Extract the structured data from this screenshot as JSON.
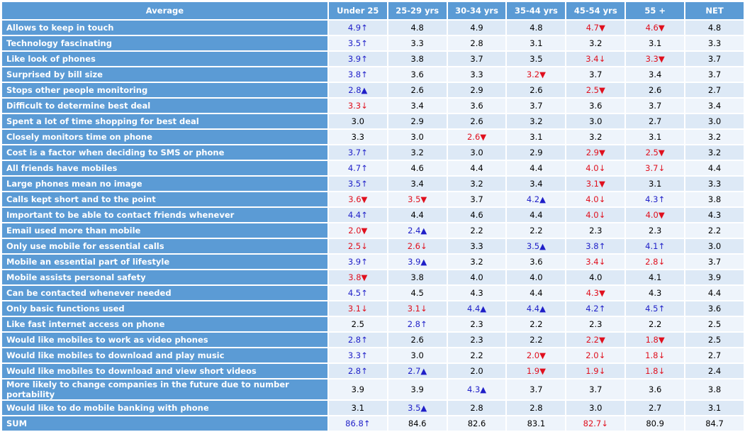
{
  "table": {
    "header": [
      "Average",
      "Under 25",
      "25-29 yrs",
      "30-34 yrs",
      "35-44 yrs",
      "45-54 yrs",
      "55 +",
      "NET"
    ],
    "colors": {
      "up": "#1f1fc8",
      "down": "#e0101e"
    },
    "rows": [
      [
        "Allows to keep in touch",
        "4.9↑",
        "4.8",
        "4.9",
        "4.8",
        "4.7▼",
        "4.6▼",
        "4.8"
      ],
      [
        "Technology fascinating",
        "3.5↑",
        "3.3",
        "2.8",
        "3.1",
        "3.2",
        "3.1",
        "3.3"
      ],
      [
        "Like look of phones",
        "3.9↑",
        "3.8",
        "3.7",
        "3.5",
        "3.4↓",
        "3.3▼",
        "3.7"
      ],
      [
        "Surprised by bill size",
        "3.8↑",
        "3.6",
        "3.3",
        "3.2▼",
        "3.7",
        "3.4",
        "3.7"
      ],
      [
        "Stops other people monitoring",
        "2.8▲",
        "2.6",
        "2.9",
        "2.6",
        "2.5▼",
        "2.6",
        "2.7"
      ],
      [
        "Difficult to determine best deal",
        "3.3↓",
        "3.4",
        "3.6",
        "3.7",
        "3.6",
        "3.7",
        "3.4"
      ],
      [
        "Spent a lot of time shopping for best deal",
        "3.0",
        "2.9",
        "2.6",
        "3.2",
        "3.0",
        "2.7",
        "3.0"
      ],
      [
        "Closely monitors time on phone",
        "3.3",
        "3.0",
        "2.6▼",
        "3.1",
        "3.2",
        "3.1",
        "3.2"
      ],
      [
        "Cost is a factor when deciding to SMS or phone",
        "3.7↑",
        "3.2",
        "3.0",
        "2.9",
        "2.9▼",
        "2.5▼",
        "3.2"
      ],
      [
        "All friends have mobiles",
        "4.7↑",
        "4.6",
        "4.4",
        "4.4",
        "4.0↓",
        "3.7↓",
        "4.4"
      ],
      [
        "Large phones mean no image",
        "3.5↑",
        "3.4",
        "3.2",
        "3.4",
        "3.1▼",
        "3.1",
        "3.3"
      ],
      [
        "Calls kept short and to the point",
        "3.6▼",
        "3.5▼",
        "3.7",
        "4.2▲",
        "4.0↓",
        "4.3↑",
        "3.8"
      ],
      [
        "Important to be able to contact friends whenever",
        "4.4↑",
        "4.4",
        "4.6",
        "4.4",
        "4.0↓",
        "4.0▼",
        "4.3"
      ],
      [
        "Email used more than mobile",
        "2.0▼",
        "2.4▲",
        "2.2",
        "2.2",
        "2.3",
        "2.3",
        "2.2"
      ],
      [
        "Only use mobile for essential calls",
        "2.5↓",
        "2.6↓",
        "3.3",
        "3.5▲",
        "3.8↑",
        "4.1↑",
        "3.0"
      ],
      [
        "Mobile an essential part of lifestyle",
        "3.9↑",
        "3.9▲",
        "3.2",
        "3.6",
        "3.4↓",
        "2.8↓",
        "3.7"
      ],
      [
        "Mobile assists personal safety",
        "3.8▼",
        "3.8",
        "4.0",
        "4.0",
        "4.0",
        "4.1",
        "3.9"
      ],
      [
        "Can be contacted whenever needed",
        "4.5↑",
        "4.5",
        "4.3",
        "4.4",
        "4.3▼",
        "4.3",
        "4.4"
      ],
      [
        "Only basic functions used",
        "3.1↓",
        "3.1↓",
        "4.4▲",
        "4.4▲",
        "4.2↑",
        "4.5↑",
        "3.6"
      ],
      [
        "Like fast internet access on phone",
        "2.5",
        "2.8↑",
        "2.3",
        "2.2",
        "2.3",
        "2.2",
        "2.5"
      ],
      [
        "Would like mobiles to work as video phones",
        "2.8↑",
        "2.6",
        "2.3",
        "2.2",
        "2.2▼",
        "1.8▼",
        "2.5"
      ],
      [
        "Would like mobiles to download and play music",
        "3.3↑",
        "3.0",
        "2.2",
        "2.0▼",
        "2.0↓",
        "1.8↓",
        "2.7"
      ],
      [
        "Would like mobiles to download and view short videos",
        "2.8↑",
        "2.7▲",
        "2.0",
        "1.9▼",
        "1.9↓",
        "1.8↓",
        "2.4"
      ],
      [
        "More likely to change companies in the future due to number portability",
        "3.9",
        "3.9",
        "4.3▲",
        "3.7",
        "3.7",
        "3.6",
        "3.8"
      ],
      [
        "Would like to do mobile banking with phone",
        "3.1",
        "3.5▲",
        "2.8",
        "2.8",
        "3.0",
        "2.7",
        "3.1"
      ],
      [
        "SUM",
        "86.8↑",
        "84.6",
        "82.6",
        "83.1",
        "82.7↓",
        "80.9",
        "84.7"
      ]
    ]
  }
}
